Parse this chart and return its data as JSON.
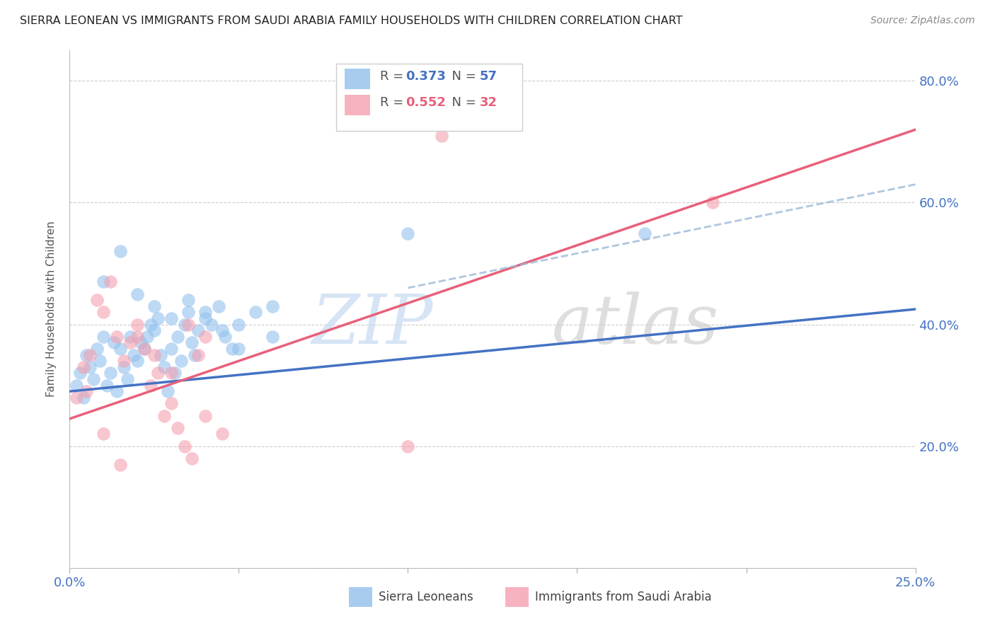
{
  "title": "SIERRA LEONEAN VS IMMIGRANTS FROM SAUDI ARABIA FAMILY HOUSEHOLDS WITH CHILDREN CORRELATION CHART",
  "source": "Source: ZipAtlas.com",
  "ylabel": "Family Households with Children",
  "xlim": [
    0.0,
    0.25
  ],
  "ylim": [
    0.0,
    0.85
  ],
  "yticks": [
    0.0,
    0.2,
    0.4,
    0.6,
    0.8
  ],
  "xticks": [
    0.0,
    0.05,
    0.1,
    0.15,
    0.2,
    0.25
  ],
  "ytick_labels": [
    "",
    "20.0%",
    "40.0%",
    "60.0%",
    "80.0%"
  ],
  "xtick_labels": [
    "0.0%",
    "",
    "",
    "",
    "",
    "25.0%"
  ],
  "R_blue": 0.373,
  "N_blue": 57,
  "R_pink": 0.552,
  "N_pink": 32,
  "blue_color": "#92C0ED",
  "pink_color": "#F4A0B0",
  "blue_line_color": "#4472C4",
  "pink_line_color": "#E8607A",
  "dashed_line_color": "#9BB8D8",
  "legend_label_blue": "Sierra Leoneans",
  "legend_label_pink": "Immigrants from Saudi Arabia",
  "blue_scatter_x": [
    0.002,
    0.003,
    0.004,
    0.005,
    0.006,
    0.007,
    0.008,
    0.009,
    0.01,
    0.011,
    0.012,
    0.013,
    0.014,
    0.015,
    0.016,
    0.017,
    0.018,
    0.019,
    0.02,
    0.021,
    0.022,
    0.023,
    0.024,
    0.025,
    0.026,
    0.027,
    0.028,
    0.029,
    0.03,
    0.031,
    0.032,
    0.033,
    0.034,
    0.035,
    0.036,
    0.037,
    0.038,
    0.04,
    0.042,
    0.044,
    0.046,
    0.048,
    0.05,
    0.055,
    0.06,
    0.01,
    0.015,
    0.02,
    0.025,
    0.03,
    0.035,
    0.04,
    0.045,
    0.05,
    0.06,
    0.1,
    0.17
  ],
  "blue_scatter_y": [
    0.3,
    0.32,
    0.28,
    0.35,
    0.33,
    0.31,
    0.36,
    0.34,
    0.38,
    0.3,
    0.32,
    0.37,
    0.29,
    0.36,
    0.33,
    0.31,
    0.38,
    0.35,
    0.34,
    0.37,
    0.36,
    0.38,
    0.4,
    0.39,
    0.41,
    0.35,
    0.33,
    0.29,
    0.36,
    0.32,
    0.38,
    0.34,
    0.4,
    0.42,
    0.37,
    0.35,
    0.39,
    0.41,
    0.4,
    0.43,
    0.38,
    0.36,
    0.4,
    0.42,
    0.38,
    0.47,
    0.52,
    0.45,
    0.43,
    0.41,
    0.44,
    0.42,
    0.39,
    0.36,
    0.43,
    0.55,
    0.55
  ],
  "pink_scatter_x": [
    0.002,
    0.004,
    0.006,
    0.008,
    0.01,
    0.012,
    0.014,
    0.016,
    0.018,
    0.02,
    0.022,
    0.024,
    0.026,
    0.028,
    0.03,
    0.032,
    0.034,
    0.036,
    0.038,
    0.04,
    0.005,
    0.01,
    0.015,
    0.02,
    0.025,
    0.03,
    0.035,
    0.04,
    0.045,
    0.1,
    0.19,
    0.11
  ],
  "pink_scatter_y": [
    0.28,
    0.33,
    0.35,
    0.44,
    0.42,
    0.47,
    0.38,
    0.34,
    0.37,
    0.4,
    0.36,
    0.3,
    0.32,
    0.25,
    0.27,
    0.23,
    0.2,
    0.18,
    0.35,
    0.38,
    0.29,
    0.22,
    0.17,
    0.38,
    0.35,
    0.32,
    0.4,
    0.25,
    0.22,
    0.2,
    0.6,
    0.71
  ],
  "blue_line_x": [
    0.0,
    0.25
  ],
  "blue_line_y": [
    0.29,
    0.425
  ],
  "pink_line_x": [
    0.0,
    0.25
  ],
  "pink_line_y": [
    0.245,
    0.72
  ],
  "dashed_line_x": [
    0.1,
    0.25
  ],
  "dashed_line_y": [
    0.46,
    0.63
  ]
}
